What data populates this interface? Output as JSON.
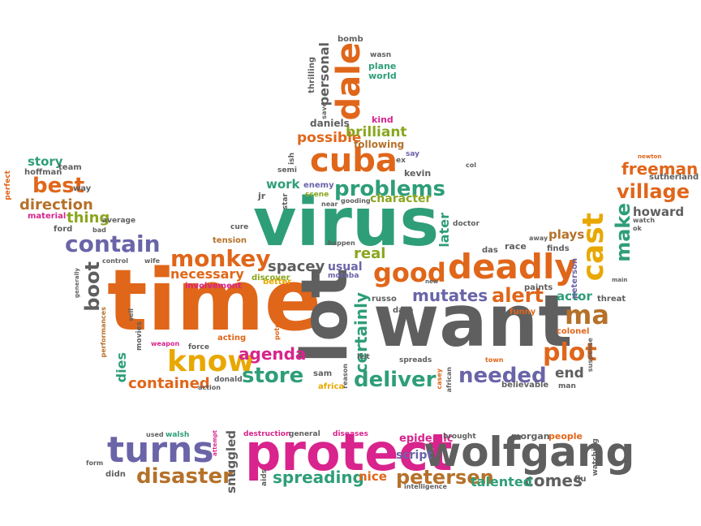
{
  "colors": {
    "green": "#2e9e78",
    "orange": "#e0661a",
    "gray": "#5f5f5f",
    "purple": "#6a64a8",
    "pink": "#d8248c",
    "olive": "#8aa61e",
    "yellow": "#e8a800",
    "brown": "#b5712a",
    "teal": "#2a8c78"
  },
  "words": {
    "virus": "virus",
    "time": "time",
    "want": "want",
    "lot": "lot",
    "protect": "protect",
    "wolfgang": "wolfgang",
    "turns": "turns",
    "deadly": "deadly",
    "cuba": "cuba",
    "dale": "dale",
    "know": "know",
    "cast": "cast",
    "good": "good",
    "monkey": "monkey",
    "contain": "contain",
    "village": "village",
    "plot": "plot",
    "ma": "ma",
    "problems": "problems",
    "disaster": "disaster",
    "petersen": "petersen",
    "needed": "needed",
    "store": "store",
    "deliver": "deliver",
    "make": "make",
    "best": "best",
    "alert": "alert",
    "mutates": "mutates",
    "certainly": "certainly",
    "freeman": "freeman",
    "boot": "boot",
    "contained": "contained",
    "spreading": "spreading",
    "comes": "comes",
    "talented": "talented",
    "agenda": "agenda",
    "personal": "personal",
    "possible": "possible",
    "brilliant": "brilliant",
    "spacey": "spacey",
    "thing": "thing",
    "direction": "direction",
    "story": "story",
    "real": "real",
    "necessary": "necessary",
    "end": "end",
    "howard": "howard",
    "actor": "actor",
    "snuggled": "snuggled",
    "epidemic": "epidemic",
    "script": "script",
    "nice": "nice",
    "character": "character",
    "work": "work",
    "plays": "plays",
    "dies": "dies",
    "usual": "usual",
    "later": "later",
    "kevin": "kevin",
    "following": "following",
    "daniels": "daniels",
    "kind": "kind",
    "thrilling": "thrilling",
    "bomb": "bomb",
    "wasn": "wasn",
    "plane": "plane",
    "world": "world",
    "save": "save",
    "ex": "ex",
    "say": "say",
    "col": "col",
    "semi": "semi",
    "ish": "ish",
    "enemy": "enemy",
    "scene": "scene",
    "near": "near",
    "gooding": "gooding",
    "jr": "jr",
    "star": "star",
    "better": "better",
    "discover": "discover",
    "involvement": "involvement",
    "tension": "tension",
    "cure": "cure",
    "happen": "happen",
    "motaba": "motaba",
    "new": "new",
    "doctor": "doctor",
    "das": "das",
    "race": "race",
    "away": "away",
    "finds": "finds",
    "peterson": "peterson",
    "paints": "paints",
    "russo": "russo",
    "date": "date",
    "funny": "funny",
    "colonel": "colonel",
    "threat": "threat",
    "main": "main",
    "suspense": "suspense",
    "town": "town",
    "believable": "believable",
    "man": "man",
    "casey": "casey",
    "african": "african",
    "africa": "africa",
    "reason": "reason",
    "spreads": "spreads",
    "list": "list",
    "sam": "sam",
    "potential": "potential",
    "donald": "donald",
    "action": "action",
    "acting": "acting",
    "force": "force",
    "weapon": "weapon",
    "movies": "movies",
    "sell": "sell",
    "performances": "performances",
    "generally": "generally",
    "control": "control",
    "wife": "wife",
    "ford": "ford",
    "bad": "bad",
    "average": "average",
    "material": "material",
    "way": "way",
    "hoffman": "hoffman",
    "team": "team",
    "perfect": "perfect",
    "newton": "newton",
    "sutherland": "sutherland",
    "watch": "watch",
    "ok": "ok",
    "used": "used",
    "walsh": "walsh",
    "attempt": "attempt",
    "destruction": "destruction",
    "general": "general",
    "diseases": "diseases",
    "brought": "brought",
    "morgan": "morgan",
    "people": "people",
    "form": "form",
    "didn": "didn",
    "aids": "aids",
    "intelligence": "intelligence",
    "flu": "flu",
    "watching": "watching"
  }
}
